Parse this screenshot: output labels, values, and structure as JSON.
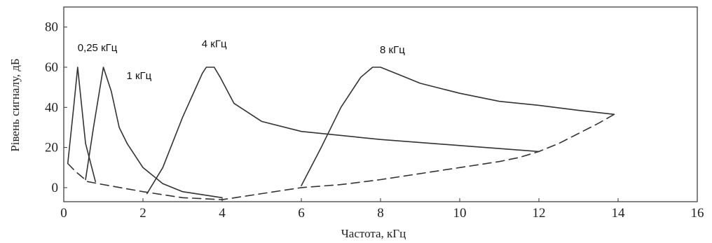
{
  "chart_data": {
    "type": "line",
    "title": "",
    "xlabel": "Частота,  кГц",
    "ylabel": "Рівень сигналу, дБ",
    "xlim": [
      0,
      16
    ],
    "ylim": [
      -7,
      90
    ],
    "xticks": [
      0,
      2,
      4,
      6,
      8,
      10,
      12,
      14,
      16
    ],
    "yticks": [
      0,
      20,
      40,
      60,
      80
    ],
    "xtick_labels": [
      "0",
      "2",
      "4",
      "6",
      "8",
      "10",
      "12",
      "14",
      "16"
    ],
    "ytick_labels": [
      "0",
      "20",
      "40",
      "60",
      "80"
    ],
    "grid": false,
    "legend": "none",
    "line_color": "#333333",
    "series": [
      {
        "name": "0,25 кГц",
        "style": "solid",
        "x": [
          0.1,
          0.25,
          0.35,
          0.55,
          0.8
        ],
        "y": [
          12,
          40,
          60,
          22,
          3
        ]
      },
      {
        "name": "1 кГц",
        "style": "solid",
        "x": [
          0.55,
          0.75,
          1.0,
          1.2,
          1.4,
          1.6,
          2.0,
          2.5,
          3.0,
          4.0
        ],
        "y": [
          4,
          30,
          60,
          48,
          30,
          22,
          10,
          2,
          -2,
          -5
        ]
      },
      {
        "name": "4 кГц",
        "style": "solid",
        "x": [
          2.1,
          2.5,
          3.0,
          3.5,
          3.6,
          3.8,
          3.95,
          4.3,
          5.0,
          6.0,
          8.0,
          10.0,
          12.0
        ],
        "y": [
          -3,
          10,
          35,
          57,
          60,
          60,
          55,
          42,
          33,
          28,
          24,
          21,
          18
        ]
      },
      {
        "name": "8 кГц",
        "style": "solid",
        "x": [
          6.0,
          6.5,
          7.0,
          7.5,
          7.8,
          8.0,
          8.5,
          9.0,
          10.0,
          11.0,
          12.0,
          13.0,
          13.9
        ],
        "y": [
          1,
          20,
          40,
          55,
          60,
          60,
          56,
          52,
          47,
          43,
          41,
          38.5,
          36.5
        ]
      },
      {
        "name": "",
        "style": "dashed",
        "x": [
          0.1,
          0.3,
          0.6,
          1.0,
          2.0,
          3.0,
          4.0,
          5.0,
          6.0,
          7.0,
          8.0,
          9.0,
          10.0,
          11.0,
          11.5,
          12.0,
          12.5,
          13.0,
          13.5,
          13.9
        ],
        "y": [
          12,
          8,
          3,
          1.5,
          -2,
          -5,
          -6,
          -3,
          0,
          1.5,
          4,
          7,
          10,
          13,
          15,
          18,
          22,
          27,
          32,
          36.5
        ]
      }
    ],
    "annotations": [
      {
        "text": "0,25 кГц",
        "x": 0.85,
        "y": 68
      },
      {
        "text": "1 кГц",
        "x": 1.9,
        "y": 54
      },
      {
        "text": "4 кГц",
        "x": 3.8,
        "y": 70
      },
      {
        "text": "8 кГц",
        "x": 8.3,
        "y": 67
      }
    ]
  }
}
